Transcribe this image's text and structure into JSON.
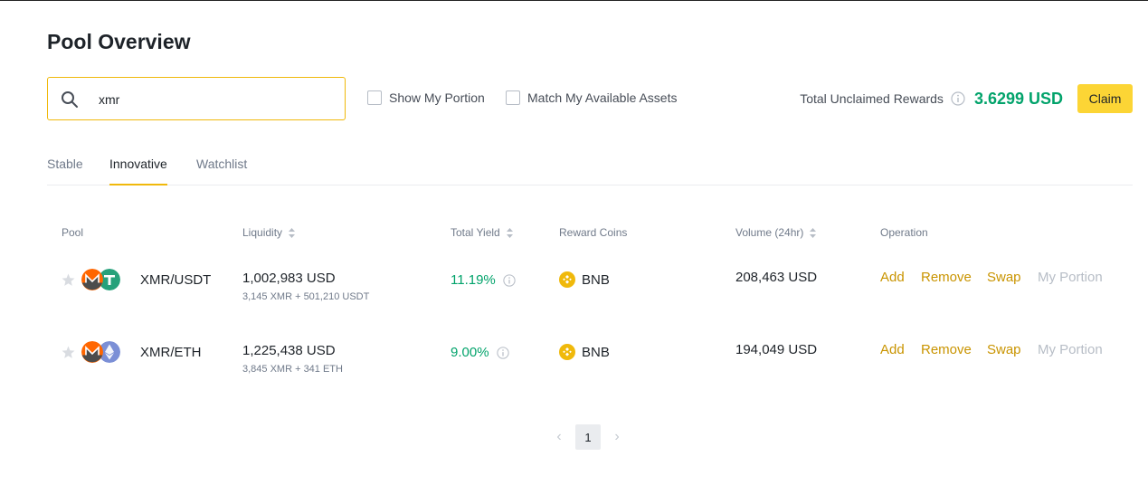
{
  "page": {
    "title": "Pool Overview"
  },
  "search": {
    "value": "xmr"
  },
  "filters": {
    "show_my_portion": "Show My Portion",
    "match_assets": "Match My Available Assets"
  },
  "rewards": {
    "label": "Total Unclaimed Rewards",
    "value": "3.6299 USD",
    "claim_label": "Claim"
  },
  "tabs": [
    "Stable",
    "Innovative",
    "Watchlist"
  ],
  "active_tab": "Innovative",
  "table": {
    "headers": {
      "pool": "Pool",
      "liquidity": "Liquidity",
      "yield": "Total Yield",
      "reward": "Reward Coins",
      "volume": "Volume (24hr)",
      "operation": "Operation"
    },
    "rows": [
      {
        "pair": "XMR/USDT",
        "liquidity": "1,002,983 USD",
        "liquidity_detail": "3,145 XMR + 501,210 USDT",
        "yield": "11.19%",
        "reward": "BNB",
        "volume": "208,463 USD"
      },
      {
        "pair": "XMR/ETH",
        "liquidity": "1,225,438 USD",
        "liquidity_detail": "3,845 XMR + 341 ETH",
        "yield": "9.00%",
        "reward": "BNB",
        "volume": "194,049 USD"
      }
    ],
    "operations": {
      "add": "Add",
      "remove": "Remove",
      "swap": "Swap",
      "my_portion": "My Portion"
    }
  },
  "pagination": {
    "current": "1"
  },
  "colors": {
    "accent": "#f0b90b",
    "claim_bg": "#fcd535",
    "positive": "#02a36b",
    "link": "#c99400"
  },
  "icons": [
    "search-icon",
    "info-icon",
    "star-icon",
    "monero-icon",
    "tether-icon",
    "ethereum-icon",
    "bnb-icon",
    "sort-icon",
    "chevron-left-icon",
    "chevron-right-icon"
  ]
}
